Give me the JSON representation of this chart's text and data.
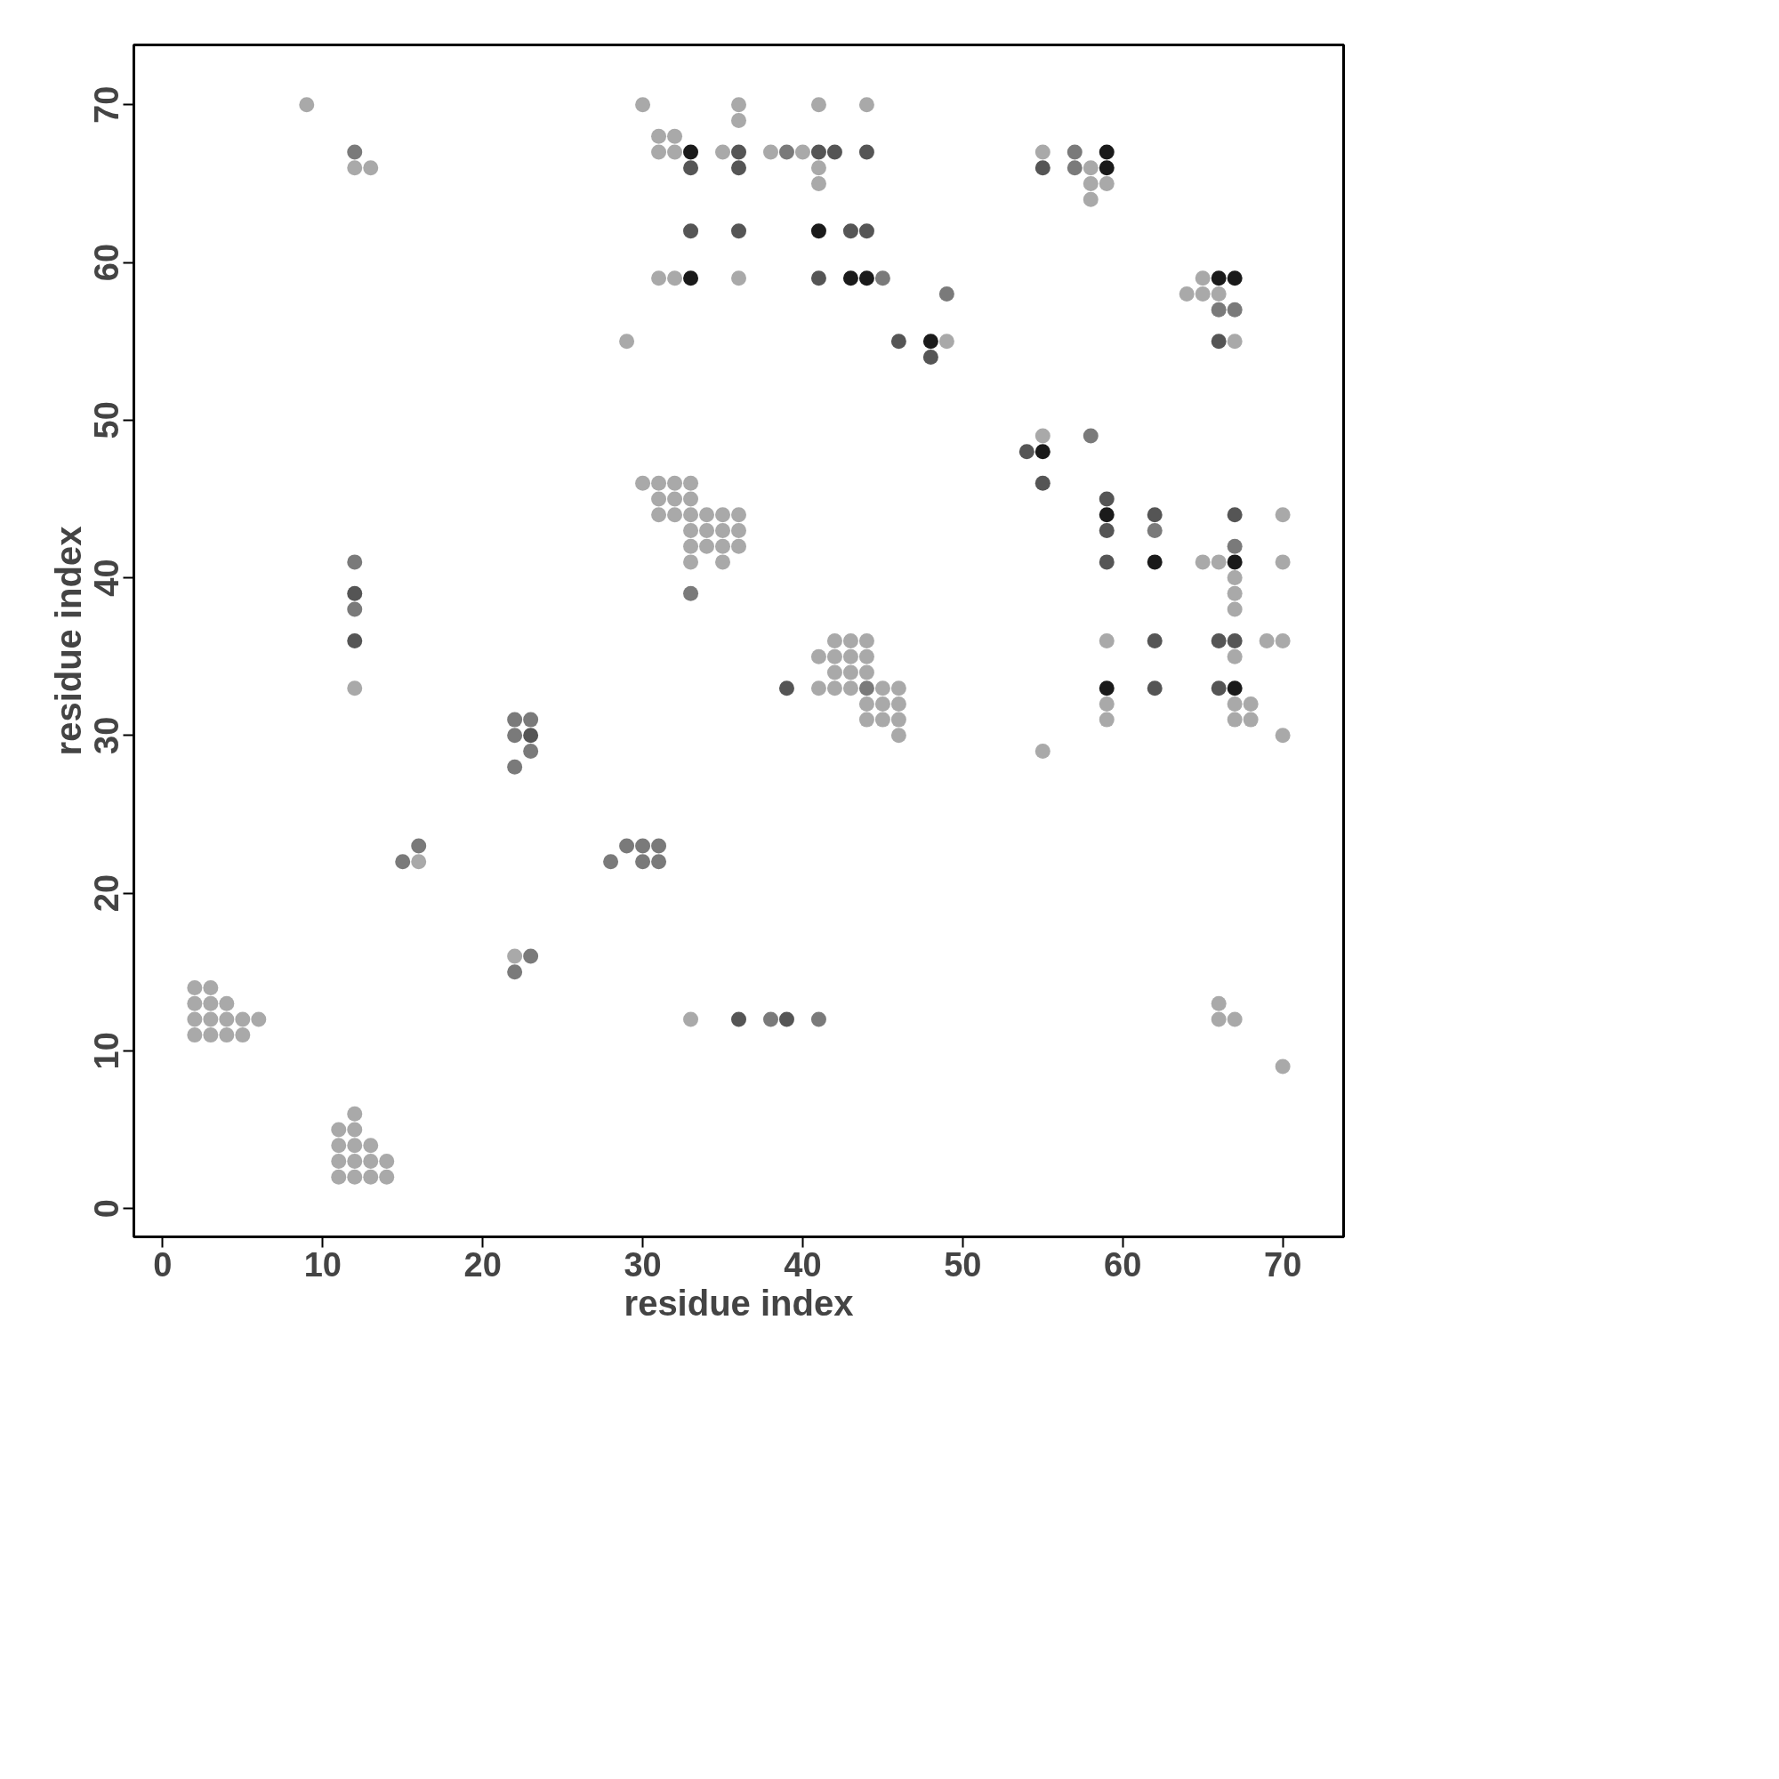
{
  "chart_data": {
    "type": "scatter",
    "xlabel": "residue index",
    "ylabel": "residue index",
    "marker": "circle",
    "xlim": [
      -1.8,
      73.8
    ],
    "ylim": [
      -1.8,
      73.8
    ],
    "xticks": [
      0,
      10,
      20,
      30,
      40,
      50,
      60,
      70
    ],
    "yticks": [
      0,
      10,
      20,
      30,
      40,
      50,
      60,
      70
    ],
    "series": [
      {
        "color": "#a9a9a9",
        "x": [
          9,
          30,
          36,
          41,
          44,
          36,
          31,
          32,
          31,
          32,
          35,
          38,
          40,
          55,
          12,
          13,
          41,
          58,
          41,
          58,
          59,
          58,
          31,
          32,
          36,
          65,
          64,
          65,
          66,
          29,
          49,
          67,
          55,
          30,
          31,
          32,
          33,
          31,
          32,
          33,
          31,
          32,
          33,
          34,
          35,
          36,
          70,
          33,
          34,
          35,
          36,
          33,
          34,
          35,
          36,
          33,
          35,
          65,
          66,
          70,
          67,
          67,
          67,
          42,
          43,
          44,
          59,
          69,
          70,
          41,
          42,
          43,
          44,
          67,
          42,
          43,
          44,
          12,
          41,
          42,
          43,
          45,
          46,
          44,
          45,
          46,
          59,
          67,
          68,
          44,
          45,
          46,
          59,
          67,
          68,
          46,
          70,
          55,
          16,
          22,
          2,
          3,
          2,
          3,
          4,
          66,
          2,
          3,
          4,
          5,
          6,
          33,
          66,
          67,
          2,
          3,
          4,
          5,
          70,
          12,
          11,
          12,
          11,
          12,
          13,
          11,
          12,
          13,
          14,
          11,
          12,
          13,
          14
        ],
        "values": [
          70,
          70,
          70,
          70,
          70,
          69,
          68,
          68,
          67,
          67,
          67,
          67,
          67,
          67,
          66,
          66,
          66,
          66,
          65,
          65,
          65,
          64,
          59,
          59,
          59,
          59,
          58,
          58,
          58,
          55,
          55,
          55,
          49,
          46,
          46,
          46,
          46,
          45,
          45,
          45,
          44,
          44,
          44,
          44,
          44,
          44,
          44,
          43,
          43,
          43,
          43,
          42,
          42,
          42,
          42,
          41,
          41,
          41,
          41,
          41,
          40,
          39,
          38,
          36,
          36,
          36,
          36,
          36,
          36,
          35,
          35,
          35,
          35,
          35,
          34,
          34,
          34,
          33,
          33,
          33,
          33,
          33,
          33,
          32,
          32,
          32,
          32,
          32,
          32,
          31,
          31,
          31,
          31,
          31,
          31,
          30,
          30,
          29,
          22,
          16,
          14,
          14,
          13,
          13,
          13,
          13,
          12,
          12,
          12,
          12,
          12,
          12,
          12,
          12,
          11,
          11,
          11,
          11,
          9,
          6,
          5,
          5,
          4,
          4,
          4,
          3,
          3,
          3,
          3,
          2,
          2,
          2,
          2
        ]
      },
      {
        "color": "#7a7a7a",
        "x": [
          12,
          39,
          57,
          57,
          45,
          49,
          66,
          67,
          58,
          62,
          67,
          12,
          33,
          12,
          44,
          22,
          23,
          22,
          23,
          22,
          16,
          29,
          30,
          31,
          15,
          28,
          30,
          31,
          23,
          22,
          38,
          41
        ],
        "values": [
          67,
          67,
          67,
          66,
          59,
          58,
          57,
          57,
          49,
          43,
          42,
          41,
          39,
          38,
          33,
          31,
          31,
          30,
          29,
          28,
          23,
          23,
          23,
          23,
          22,
          22,
          22,
          22,
          16,
          15,
          12,
          12
        ]
      },
      {
        "color": "#555555",
        "x": [
          36,
          41,
          42,
          44,
          33,
          36,
          55,
          33,
          36,
          43,
          44,
          41,
          46,
          66,
          48,
          54,
          55,
          59,
          62,
          67,
          59,
          59,
          12,
          12,
          62,
          66,
          67,
          39,
          62,
          66,
          23,
          36,
          39
        ],
        "values": [
          67,
          67,
          67,
          67,
          66,
          66,
          66,
          62,
          62,
          62,
          62,
          59,
          55,
          55,
          54,
          48,
          46,
          45,
          44,
          44,
          43,
          41,
          39,
          36,
          36,
          36,
          36,
          33,
          33,
          33,
          30,
          12,
          12
        ]
      },
      {
        "color": "#1a1a1a",
        "x": [
          33,
          59,
          59,
          41,
          33,
          43,
          44,
          66,
          67,
          48,
          55,
          59,
          62,
          67,
          59,
          67
        ],
        "values": [
          67,
          67,
          66,
          62,
          59,
          59,
          59,
          59,
          59,
          55,
          48,
          44,
          41,
          41,
          33,
          33
        ]
      }
    ]
  }
}
